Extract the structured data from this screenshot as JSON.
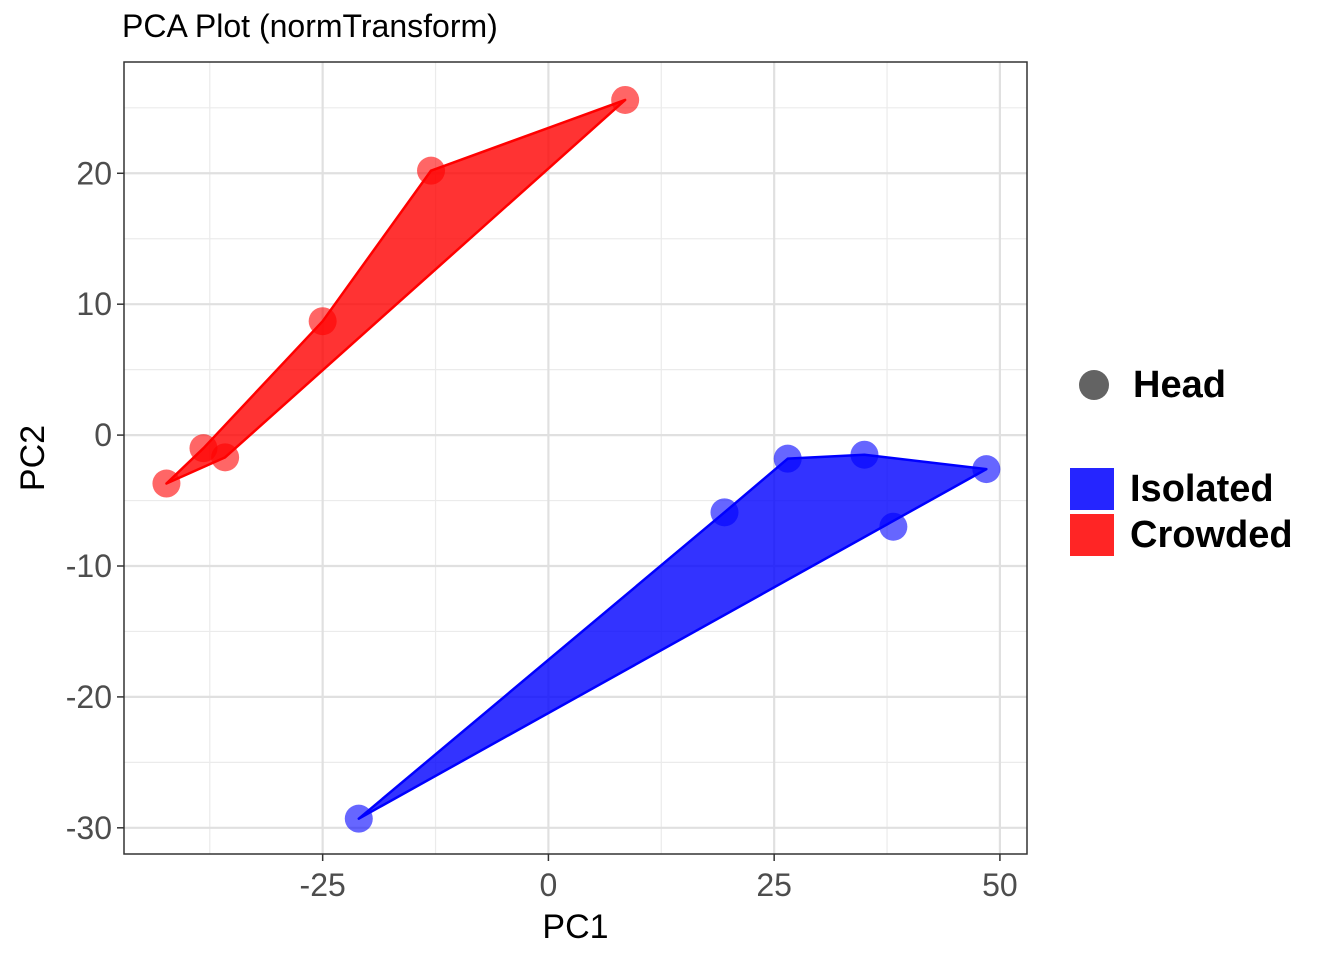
{
  "chart_data": {
    "type": "scatter",
    "title": "PCA Plot (normTransform)",
    "xlabel": "PC1",
    "ylabel": "PC2",
    "xlim": [
      -47,
      53
    ],
    "ylim": [
      -32,
      28.5
    ],
    "x_ticks": [
      -25,
      0,
      25,
      50
    ],
    "x_tick_labels": [
      "-25",
      "0",
      "25",
      "50"
    ],
    "y_ticks": [
      -30,
      -20,
      -10,
      0,
      10,
      20
    ],
    "y_tick_labels": [
      "-30",
      "-20",
      "-10",
      "0",
      "10",
      "20"
    ],
    "grid": true,
    "legend_position": "right",
    "shape_legend": {
      "label": "Head",
      "color": "#636363"
    },
    "series": [
      {
        "name": "Isolated",
        "color": "#0000ff",
        "points": [
          {
            "x": -21.0,
            "y": -29.3
          },
          {
            "x": 19.5,
            "y": -5.9
          },
          {
            "x": 26.5,
            "y": -1.8
          },
          {
            "x": 35.0,
            "y": -1.5
          },
          {
            "x": 38.2,
            "y": -7.0
          },
          {
            "x": 48.5,
            "y": -2.6
          }
        ],
        "hull": [
          [
            -21.0,
            -29.3
          ],
          [
            19.5,
            -5.9
          ],
          [
            26.5,
            -1.8
          ],
          [
            35.0,
            -1.5
          ],
          [
            48.5,
            -2.6
          ]
        ]
      },
      {
        "name": "Crowded",
        "color": "#ff0000",
        "points": [
          {
            "x": -42.3,
            "y": -3.7
          },
          {
            "x": -38.2,
            "y": -1.0
          },
          {
            "x": -35.8,
            "y": -1.7
          },
          {
            "x": -25.0,
            "y": 8.7
          },
          {
            "x": -13.0,
            "y": 20.2
          },
          {
            "x": 8.5,
            "y": 25.6
          }
        ],
        "hull": [
          [
            -42.3,
            -3.7
          ],
          [
            -38.2,
            -1.0
          ],
          [
            -25.0,
            8.7
          ],
          [
            -13.0,
            20.2
          ],
          [
            8.5,
            25.6
          ],
          [
            -35.8,
            -1.7
          ]
        ]
      }
    ]
  }
}
